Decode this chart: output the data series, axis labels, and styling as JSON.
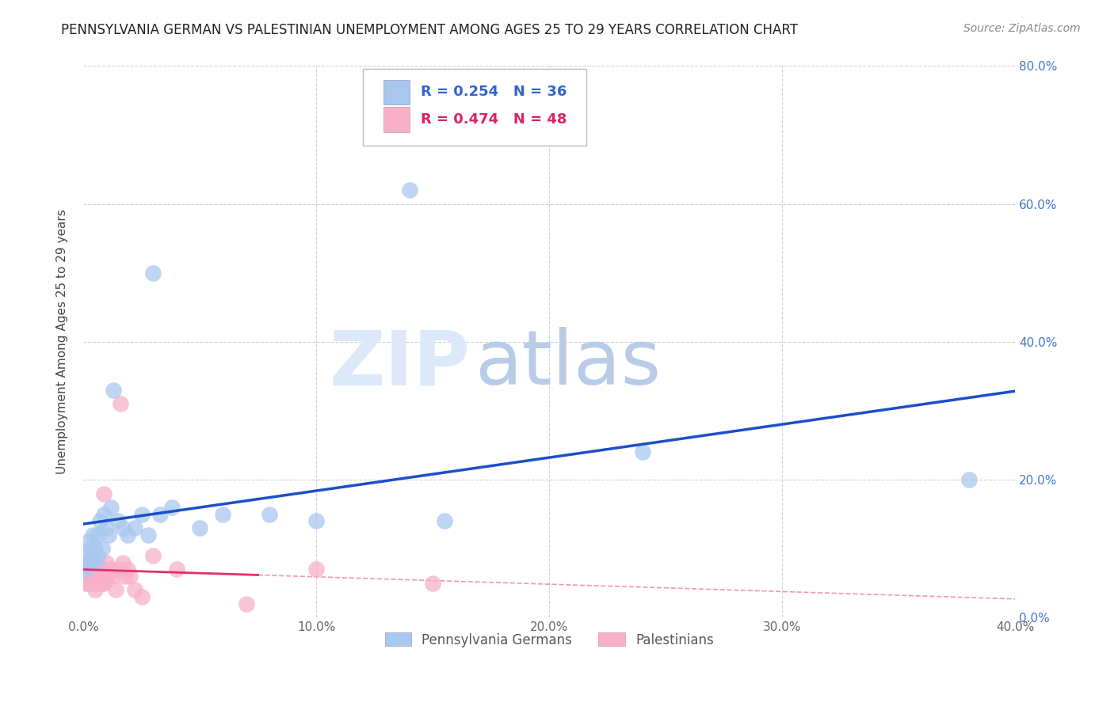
{
  "title": "PENNSYLVANIA GERMAN VS PALESTINIAN UNEMPLOYMENT AMONG AGES 25 TO 29 YEARS CORRELATION CHART",
  "source": "Source: ZipAtlas.com",
  "ylabel": "Unemployment Among Ages 25 to 29 years",
  "xlim": [
    0.0,
    0.4
  ],
  "ylim": [
    0.0,
    0.8
  ],
  "xticks": [
    0.0,
    0.1,
    0.2,
    0.3,
    0.4
  ],
  "yticks": [
    0.0,
    0.2,
    0.4,
    0.6,
    0.8
  ],
  "xtick_labels": [
    "0.0%",
    "10.0%",
    "20.0%",
    "30.0%",
    "40.0%"
  ],
  "ytick_labels": [
    "0.0%",
    "20.0%",
    "40.0%",
    "60.0%",
    "80.0%"
  ],
  "bg_color": "#ffffff",
  "grid_color": "#cccccc",
  "watermark_zip": "ZIP",
  "watermark_atlas": "atlas",
  "pg_color": "#a8c8f0",
  "pg_trend_color": "#1a4fcc",
  "pal_color": "#f8b0c8",
  "pal_trend_color": "#e03070",
  "pg_R": "0.254",
  "pg_N": "36",
  "pal_R": "0.474",
  "pal_N": "48",
  "pg_label": "Pennsylvania Germans",
  "pal_label": "Palestinians",
  "pg_x": [
    0.001,
    0.001,
    0.002,
    0.002,
    0.003,
    0.003,
    0.004,
    0.004,
    0.005,
    0.005,
    0.006,
    0.006,
    0.007,
    0.008,
    0.009,
    0.01,
    0.011,
    0.012,
    0.013,
    0.015,
    0.017,
    0.019,
    0.022,
    0.025,
    0.028,
    0.03,
    0.033,
    0.038,
    0.05,
    0.06,
    0.08,
    0.1,
    0.14,
    0.155,
    0.24,
    0.38
  ],
  "pg_y": [
    0.09,
    0.07,
    0.08,
    0.11,
    0.1,
    0.08,
    0.09,
    0.12,
    0.1,
    0.08,
    0.12,
    0.09,
    0.14,
    0.1,
    0.15,
    0.13,
    0.12,
    0.16,
    0.33,
    0.14,
    0.13,
    0.12,
    0.13,
    0.15,
    0.12,
    0.5,
    0.15,
    0.16,
    0.13,
    0.15,
    0.15,
    0.14,
    0.62,
    0.14,
    0.24,
    0.2
  ],
  "pal_x": [
    0.001,
    0.001,
    0.001,
    0.002,
    0.002,
    0.002,
    0.003,
    0.003,
    0.003,
    0.003,
    0.004,
    0.004,
    0.004,
    0.005,
    0.005,
    0.005,
    0.005,
    0.006,
    0.006,
    0.006,
    0.006,
    0.007,
    0.007,
    0.007,
    0.008,
    0.008,
    0.008,
    0.009,
    0.009,
    0.01,
    0.01,
    0.011,
    0.012,
    0.013,
    0.014,
    0.015,
    0.016,
    0.017,
    0.018,
    0.019,
    0.02,
    0.022,
    0.025,
    0.03,
    0.04,
    0.07,
    0.1,
    0.15
  ],
  "pal_y": [
    0.06,
    0.08,
    0.05,
    0.06,
    0.07,
    0.05,
    0.07,
    0.06,
    0.05,
    0.08,
    0.06,
    0.05,
    0.07,
    0.04,
    0.06,
    0.07,
    0.05,
    0.06,
    0.08,
    0.05,
    0.07,
    0.06,
    0.07,
    0.05,
    0.06,
    0.07,
    0.05,
    0.18,
    0.05,
    0.06,
    0.08,
    0.06,
    0.07,
    0.06,
    0.04,
    0.07,
    0.31,
    0.08,
    0.06,
    0.07,
    0.06,
    0.04,
    0.03,
    0.09,
    0.07,
    0.02,
    0.07,
    0.05
  ],
  "title_fontsize": 12,
  "axis_fontsize": 11,
  "tick_fontsize": 11,
  "source_fontsize": 10,
  "legend_fontsize": 13
}
